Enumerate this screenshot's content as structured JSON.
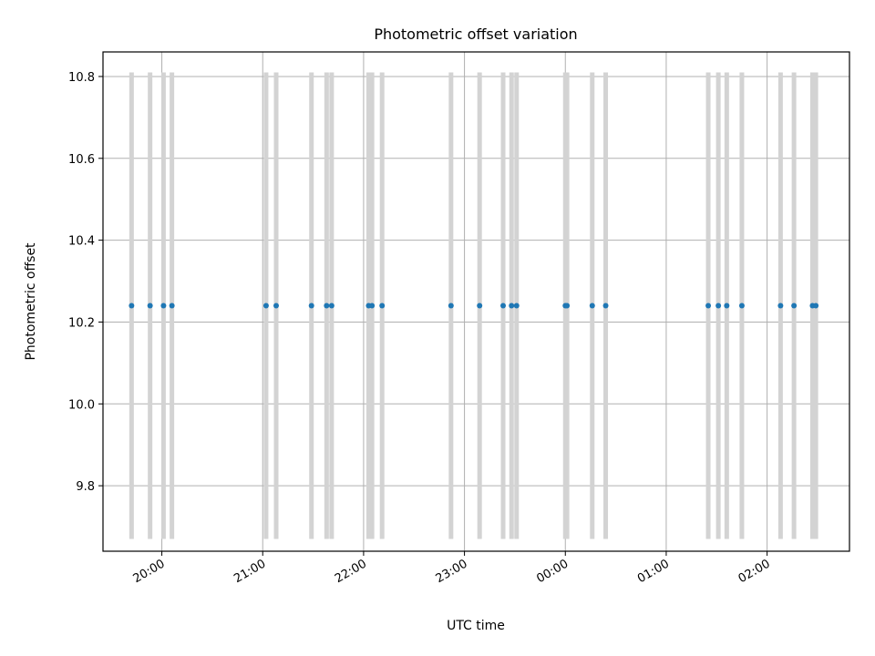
{
  "chart_data": {
    "type": "scatter",
    "title": "Photometric offset variation",
    "xlabel": "UTC time",
    "ylabel": "Photometric offset",
    "x_unit": "UTC time (HH:MM)",
    "xlim": [
      "19:25",
      "02:49"
    ],
    "ylim": [
      9.64,
      10.86
    ],
    "x_ticks": [
      "20:00",
      "21:00",
      "22:00",
      "23:00",
      "00:00",
      "01:00",
      "02:00"
    ],
    "y_ticks": [
      9.8,
      10.0,
      10.2,
      10.4,
      10.6,
      10.8
    ],
    "grid": true,
    "marker_color": "#1f77b4",
    "error_bar_color": "#d3d3d3",
    "points": [
      {
        "x": "19:42",
        "y": 10.24,
        "yerr": 0.57
      },
      {
        "x": "19:53",
        "y": 10.24,
        "yerr": 0.57
      },
      {
        "x": "20:01",
        "y": 10.24,
        "yerr": 0.57
      },
      {
        "x": "20:06",
        "y": 10.24,
        "yerr": 0.57
      },
      {
        "x": "21:02",
        "y": 10.24,
        "yerr": 0.57
      },
      {
        "x": "21:08",
        "y": 10.24,
        "yerr": 0.57
      },
      {
        "x": "21:29",
        "y": 10.24,
        "yerr": 0.57
      },
      {
        "x": "21:38",
        "y": 10.24,
        "yerr": 0.57
      },
      {
        "x": "21:41",
        "y": 10.24,
        "yerr": 0.57
      },
      {
        "x": "22:03",
        "y": 10.24,
        "yerr": 0.57
      },
      {
        "x": "22:05",
        "y": 10.24,
        "yerr": 0.57
      },
      {
        "x": "22:11",
        "y": 10.24,
        "yerr": 0.57
      },
      {
        "x": "22:52",
        "y": 10.24,
        "yerr": 0.57
      },
      {
        "x": "23:09",
        "y": 10.24,
        "yerr": 0.57
      },
      {
        "x": "23:23",
        "y": 10.24,
        "yerr": 0.57
      },
      {
        "x": "23:28",
        "y": 10.24,
        "yerr": 0.57
      },
      {
        "x": "23:31",
        "y": 10.24,
        "yerr": 0.57
      },
      {
        "x": "00:00",
        "y": 10.24,
        "yerr": 0.57
      },
      {
        "x": "00:01",
        "y": 10.24,
        "yerr": 0.57
      },
      {
        "x": "00:16",
        "y": 10.24,
        "yerr": 0.57
      },
      {
        "x": "00:24",
        "y": 10.24,
        "yerr": 0.57
      },
      {
        "x": "01:25",
        "y": 10.24,
        "yerr": 0.57
      },
      {
        "x": "01:31",
        "y": 10.24,
        "yerr": 0.57
      },
      {
        "x": "01:36",
        "y": 10.24,
        "yerr": 0.57
      },
      {
        "x": "01:45",
        "y": 10.24,
        "yerr": 0.57
      },
      {
        "x": "02:08",
        "y": 10.24,
        "yerr": 0.57
      },
      {
        "x": "02:16",
        "y": 10.24,
        "yerr": 0.57
      },
      {
        "x": "02:27",
        "y": 10.24,
        "yerr": 0.57
      },
      {
        "x": "02:29",
        "y": 10.24,
        "yerr": 0.57
      }
    ]
  }
}
